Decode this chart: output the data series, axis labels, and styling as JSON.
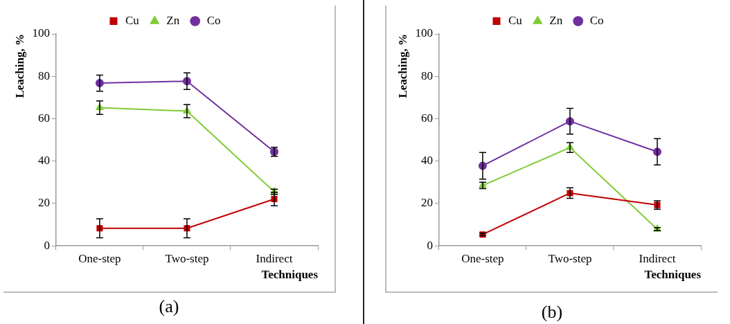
{
  "chart_data": [
    {
      "type": "line",
      "xlabel": "Techniques",
      "ylabel": "Leaching, %",
      "categories": [
        "One-step",
        "Two-step",
        "Indirect"
      ],
      "ylim": [
        0,
        100
      ],
      "yticks": [
        0,
        20,
        40,
        60,
        80,
        100
      ],
      "grid": false,
      "legend": "top",
      "annotations": [
        "(a)"
      ],
      "series": [
        {
          "name": "Cu",
          "color": "#c00000",
          "marker": "square",
          "values": [
            8.3,
            8.3,
            22.1
          ],
          "errors": [
            4.5,
            4.5,
            3.2
          ]
        },
        {
          "name": "Zn",
          "color": "#7fcc34",
          "marker": "triangle",
          "values": [
            65.2,
            63.6,
            25.5
          ],
          "errors": [
            3.2,
            3.1,
            1.3
          ]
        },
        {
          "name": "Co",
          "color": "#7030a0",
          "marker": "circle",
          "values": [
            76.8,
            77.7,
            44.4
          ],
          "errors": [
            3.8,
            3.9,
            2.1
          ]
        }
      ]
    },
    {
      "type": "line",
      "xlabel": "Techniques",
      "ylabel": "Leaching, %",
      "categories": [
        "One-step",
        "Two-step",
        "Indirect"
      ],
      "ylim": [
        0,
        100
      ],
      "yticks": [
        0,
        20,
        40,
        60,
        80,
        100
      ],
      "grid": false,
      "legend": "top",
      "annotations": [
        "(b)"
      ],
      "series": [
        {
          "name": "Cu",
          "color": "#c00000",
          "marker": "square",
          "values": [
            5.4,
            24.9,
            19.3
          ],
          "errors": [
            0.6,
            2.5,
            2
          ]
        },
        {
          "name": "Zn",
          "color": "#7fcc34",
          "marker": "triangle",
          "values": [
            28.5,
            46.4,
            7.9
          ],
          "errors": [
            1.5,
            2.3,
            0.7
          ]
        },
        {
          "name": "Co",
          "color": "#7030a0",
          "marker": "circle",
          "values": [
            37.8,
            58.8,
            44.4
          ],
          "errors": [
            6.3,
            6.1,
            6.2
          ]
        }
      ]
    }
  ]
}
